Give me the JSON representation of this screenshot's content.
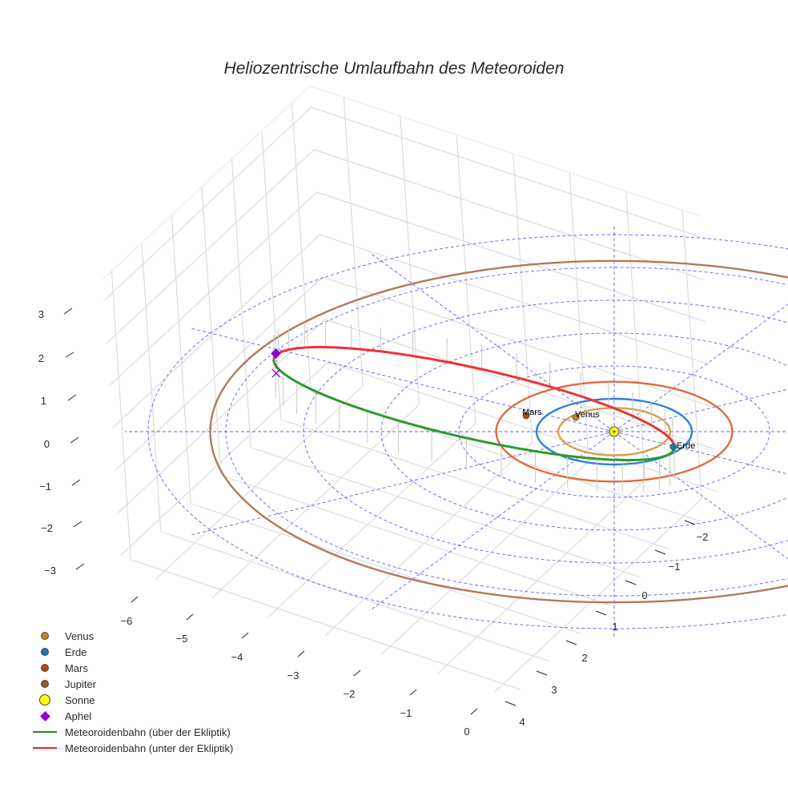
{
  "title": "Heliozentrische Umlaufbahn des Meteoroiden",
  "legend": {
    "items": [
      {
        "label": "Venus",
        "symbol": "dot",
        "color": "#c8821e"
      },
      {
        "label": "Erde",
        "symbol": "dot",
        "color": "#1f77b4"
      },
      {
        "label": "Mars",
        "symbol": "dot",
        "color": "#c1440e"
      },
      {
        "label": "Jupiter",
        "symbol": "dot",
        "color": "#a0522d"
      },
      {
        "label": "Sonne",
        "symbol": "bigdot",
        "color": "#ffff00"
      },
      {
        "label": "Aphel",
        "symbol": "diamond",
        "color": "#9400d3"
      },
      {
        "label": "Meteoroidenbahn (über der Ekliptik)",
        "symbol": "line",
        "color": "#228b22"
      },
      {
        "label": "Meteoroidenbahn (unter der Ekliptik)",
        "symbol": "line",
        "color": "#ee2222"
      }
    ]
  },
  "planet_labels": {
    "mars": "Mars",
    "venus": "Venus",
    "erde": "Erde"
  },
  "chart_data": {
    "type": "scatter3d",
    "title": "Heliozentrische Umlaufbahn des Meteoroiden",
    "axes": {
      "x": {
        "ticks": [
          -6,
          -5,
          -4,
          -3,
          -2,
          -1,
          0
        ],
        "range": [
          -6.6,
          0.3
        ]
      },
      "y": {
        "ticks": [
          -2,
          -1,
          0,
          1,
          2,
          3,
          4
        ],
        "range": [
          -2.6,
          4.3
        ]
      },
      "z": {
        "ticks": [
          -3,
          -2,
          -1,
          0,
          1,
          2,
          3
        ],
        "range": [
          -3.3,
          3.5
        ]
      }
    },
    "grid": true,
    "legend_position": "bottom-left",
    "series": [
      {
        "name": "Venus",
        "type": "orbit+marker",
        "orbit_radius_au": 0.72,
        "color": "#d4a04a",
        "marker_angle_deg": 140
      },
      {
        "name": "Erde",
        "type": "orbit+marker",
        "orbit_radius_au": 1.0,
        "color": "#2f7ed8",
        "marker_angle_deg": -20
      },
      {
        "name": "Mars",
        "type": "orbit+marker",
        "orbit_radius_au": 1.52,
        "color": "#e06a3c",
        "marker_angle_deg": 170
      },
      {
        "name": "Jupiter",
        "type": "orbit",
        "orbit_radius_au": 5.2,
        "color": "#b07a5a"
      },
      {
        "name": "Sonne",
        "type": "marker",
        "position": [
          0,
          0,
          0
        ],
        "color": "#ffff00"
      },
      {
        "name": "Aphel",
        "type": "marker",
        "position": [
          -6.1,
          0.5,
          0.35
        ],
        "color": "#9400d3"
      },
      {
        "name": "Meteoroidenbahn (über der Ekliptik)",
        "type": "line",
        "color": "#2e9a2e",
        "perihelion_au": 0.98,
        "aphelion_au": 6.1
      },
      {
        "name": "Meteoroidenbahn (unter der Ekliptik)",
        "type": "line",
        "color": "#ee3333"
      }
    ],
    "ecliptic_rings_au": [
      1,
      2,
      3,
      4,
      5,
      6
    ],
    "ecliptic_ring_color": "#4444ee"
  }
}
